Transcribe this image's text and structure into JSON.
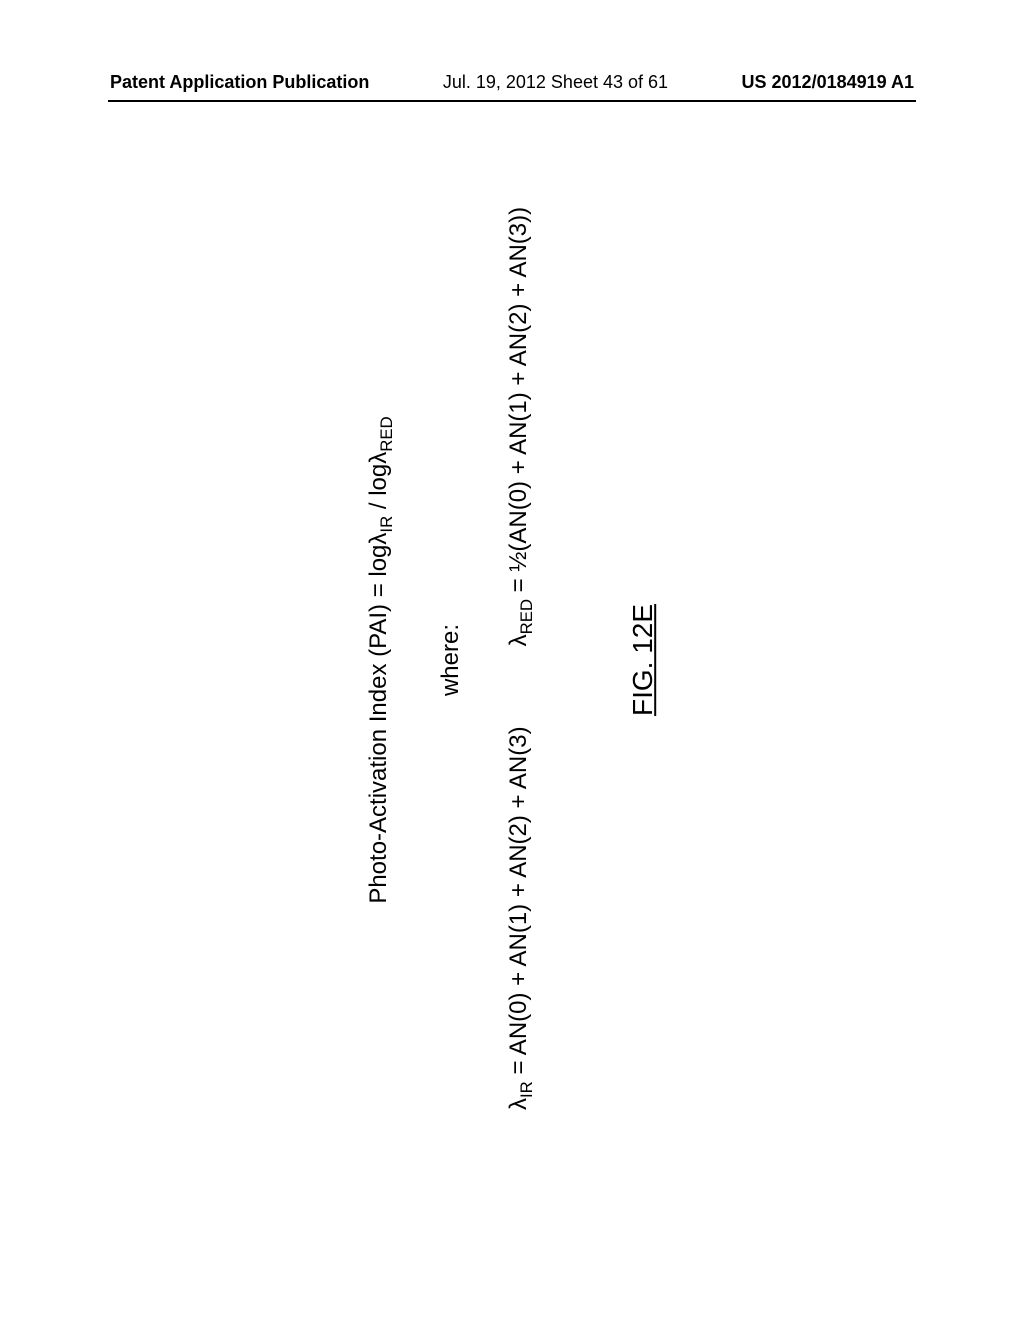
{
  "header": {
    "left": "Patent Application Publication",
    "center": "Jul. 19, 2012  Sheet 43 of 61",
    "right": "US 2012/0184919 A1"
  },
  "content": {
    "main_formula_prefix": "Photo-Activation Index (PAI) = logλ",
    "main_formula_sub1": "IR",
    "main_formula_mid": " / logλ",
    "main_formula_sub2": "RED",
    "where_label": "where:",
    "lambda_ir_prefix": "λ",
    "lambda_ir_sub": "IR",
    "lambda_ir_expr": " = AN(0) + AN(1) + AN(2) + AN(3)",
    "lambda_red_prefix": "λ",
    "lambda_red_sub": "RED",
    "lambda_red_expr": " = ½(AN(0) + AN(1) + AN(2) + AN(3))",
    "figure_label": "FIG. 12E"
  }
}
